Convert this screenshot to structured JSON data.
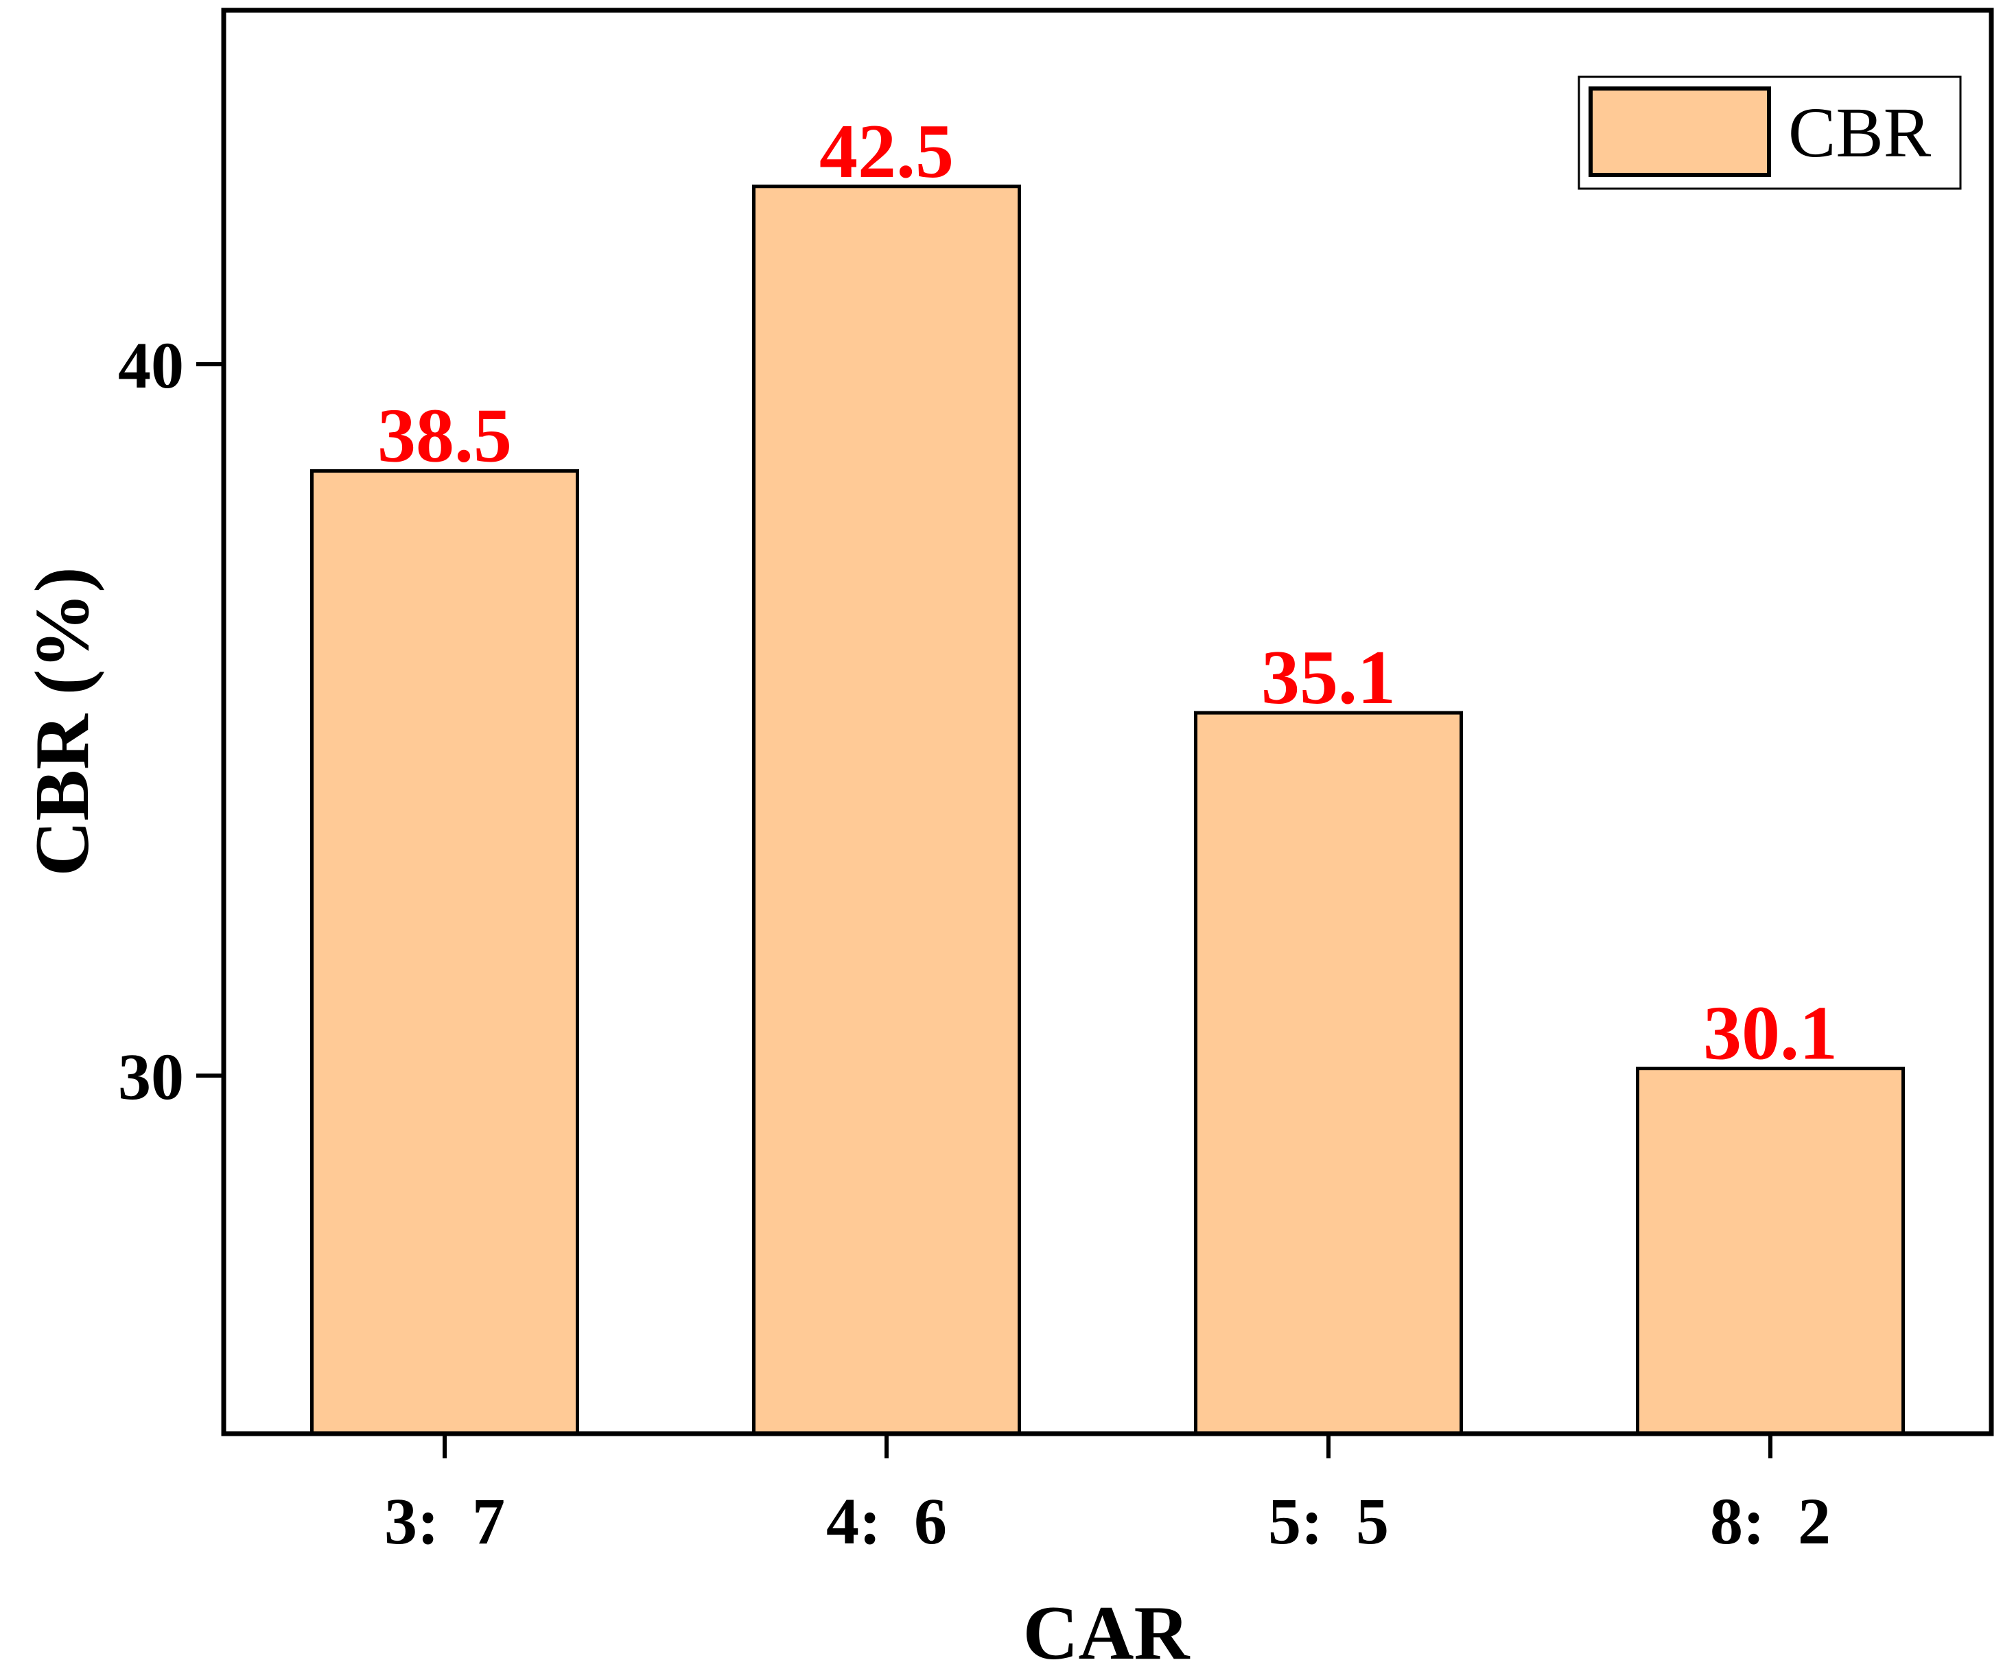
{
  "chart_data": {
    "type": "bar",
    "categories": [
      "3:  7",
      "4:  6",
      "5:  5",
      "8:  2"
    ],
    "series": [
      {
        "name": "CBR",
        "values": [
          38.5,
          42.5,
          35.1,
          30.1
        ]
      }
    ],
    "data_labels": [
      "38.5",
      "42.5",
      "35.1",
      "30.1"
    ],
    "xlabel": "CAR",
    "ylabel": "CBR (%)",
    "ylim": [
      25,
      45
    ],
    "yticks": [
      30,
      40
    ],
    "ytick_labels": [
      "30",
      "40"
    ],
    "grid": false,
    "legend": {
      "position": "top-right",
      "entries": [
        "CBR"
      ]
    },
    "colors": {
      "bar_fill": "#FFCA96",
      "bar_stroke": "#000000",
      "data_label": "#FF0000"
    }
  }
}
